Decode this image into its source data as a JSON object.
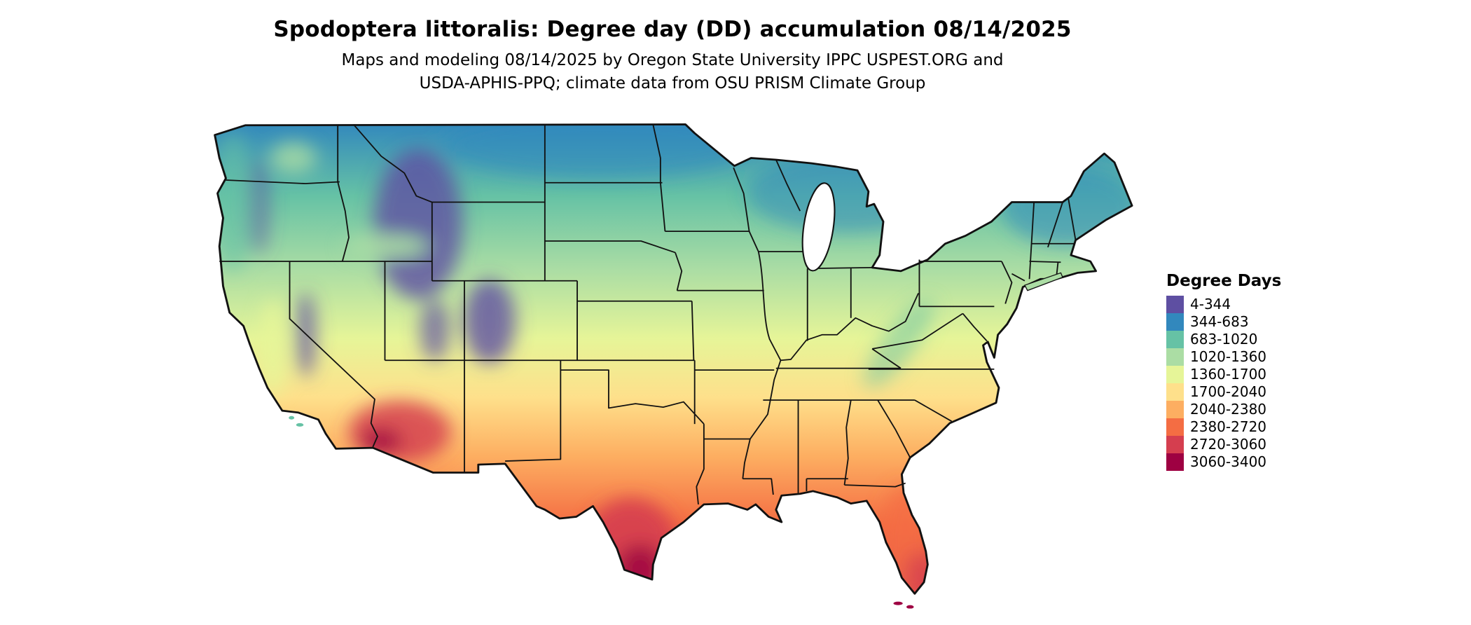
{
  "header": {
    "title": "Spodoptera littoralis: Degree day (DD) accumulation 08/14/2025",
    "subtitle_line1": "Maps and modeling 08/14/2025 by Oregon State University IPPC USPEST.ORG and",
    "subtitle_line2": "USDA-APHIS-PPQ; climate data from OSU PRISM Climate Group"
  },
  "map": {
    "region": "Continental United States",
    "kind": "degree-day accumulation raster"
  },
  "legend": {
    "title": "Degree Days",
    "items": [
      {
        "label": "4-344",
        "color": "#5e4fa2"
      },
      {
        "label": "344-683",
        "color": "#3288bd"
      },
      {
        "label": "683-1020",
        "color": "#66c2a5"
      },
      {
        "label": "1020-1360",
        "color": "#abdda4"
      },
      {
        "label": "1360-1700",
        "color": "#e6f598"
      },
      {
        "label": "1700-2040",
        "color": "#fee08b"
      },
      {
        "label": "2040-2380",
        "color": "#fdae61"
      },
      {
        "label": "2380-2720",
        "color": "#f46d43"
      },
      {
        "label": "2720-3060",
        "color": "#d53e4f"
      },
      {
        "label": "3060-3400",
        "color": "#9e0142"
      }
    ]
  }
}
